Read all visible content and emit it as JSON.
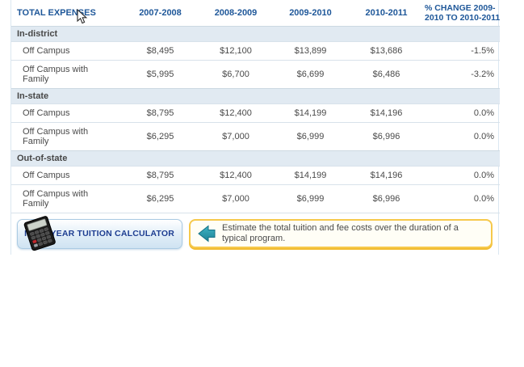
{
  "table": {
    "title": "TOTAL EXPENSES",
    "year_columns": [
      "2007-2008",
      "2008-2009",
      "2009-2010",
      "2010-2011"
    ],
    "pct_header": [
      "% CHANGE 2009-",
      "2010 TO 2010-2011"
    ],
    "groups": [
      {
        "label": "In-district",
        "rows": [
          {
            "label": "Off Campus",
            "values": [
              "$8,495",
              "$12,100",
              "$13,899",
              "$13,686"
            ],
            "pct": "-1.5%"
          },
          {
            "label": "Off Campus with Family",
            "values": [
              "$5,995",
              "$6,700",
              "$6,699",
              "$6,486"
            ],
            "pct": "-3.2%"
          }
        ]
      },
      {
        "label": "In-state",
        "rows": [
          {
            "label": "Off Campus",
            "values": [
              "$8,795",
              "$12,400",
              "$14,199",
              "$14,196"
            ],
            "pct": "0.0%"
          },
          {
            "label": "Off Campus with Family",
            "values": [
              "$6,295",
              "$7,000",
              "$6,999",
              "$6,996"
            ],
            "pct": "0.0%"
          }
        ]
      },
      {
        "label": "Out-of-state",
        "rows": [
          {
            "label": "Off Campus",
            "values": [
              "$8,795",
              "$12,400",
              "$14,199",
              "$14,196"
            ],
            "pct": "0.0%"
          },
          {
            "label": "Off Campus with Family",
            "values": [
              "$6,295",
              "$7,000",
              "$6,999",
              "$6,996"
            ],
            "pct": "0.0%"
          }
        ]
      }
    ]
  },
  "footer": {
    "button_label": "MULTIYEAR TUITION CALCULATOR",
    "info_text": "Estimate the total tuition and fee costs over the duration of a typical program."
  },
  "icons": {
    "button_icon": "calculator-icon",
    "info_icon": "teal-left-arrow-icon",
    "pointer": "mouse-cursor-icon"
  },
  "colors": {
    "header_text": "#1e5799",
    "section_row_bg": "#e1eaf2",
    "row_border": "#d8e2ea",
    "panel_border": "#dbe7f1",
    "button_text": "#1d3d91",
    "button_border": "#abcbe3",
    "info_border": "#f6c94c",
    "info_bg": "#fffef6",
    "arrow_teal": "#2798ad",
    "body_text": "#4a4a4a"
  }
}
